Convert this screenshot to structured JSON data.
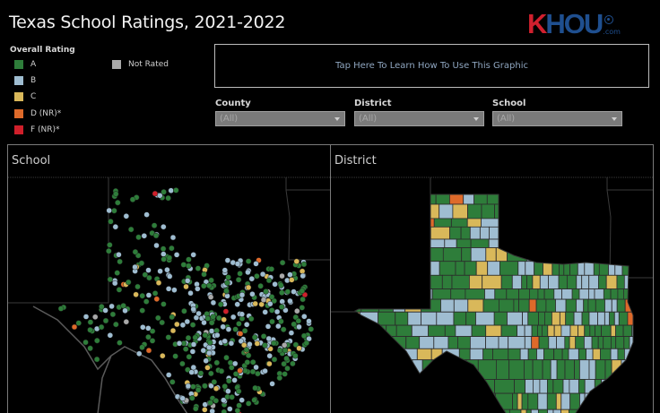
{
  "header": {
    "title": "Texas School Ratings, 2021-2022",
    "logo": {
      "k": "K",
      "rest": "HOU",
      "suffix": ".com",
      "colors": {
        "k": "#d0202e",
        "rest": "#1f4f8f"
      }
    }
  },
  "legend": {
    "title": "Overall Rating",
    "items": [
      {
        "label": "A",
        "color": "#2e7d3a"
      },
      {
        "label": "B",
        "color": "#9fbdd1"
      },
      {
        "label": "C",
        "color": "#d9b85a"
      },
      {
        "label": "D (NR)*",
        "color": "#de6a2a"
      },
      {
        "label": "F (NR)*",
        "color": "#cf1f2a"
      },
      {
        "label": "Not Rated",
        "color": "#a9a9a9"
      }
    ]
  },
  "info_box": {
    "label": "Tap Here To Learn How To Use This Graphic"
  },
  "filters": [
    {
      "label": "County",
      "value": "(All)"
    },
    {
      "label": "District",
      "value": "(All)"
    },
    {
      "label": "School",
      "value": "(All)"
    }
  ],
  "panels": {
    "school": {
      "title": "School",
      "mark_type": "points"
    },
    "district": {
      "title": "District",
      "mark_type": "filled regions"
    }
  },
  "map": {
    "background": "#000000",
    "state_outline_color": "#555555",
    "rating_mix_note": "Predominantly A (green) and B (light blue), scattered C (yellow), few D (orange) and F (red)"
  }
}
